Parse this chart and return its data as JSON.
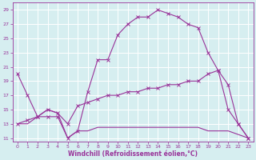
{
  "title": "",
  "xlabel": "Windchill (Refroidissement éolien,°C)",
  "background_color": "#d6eef0",
  "grid_color": "#ffffff",
  "line_color": "#993399",
  "xlim": [
    -0.5,
    23.5
  ],
  "ylim": [
    10.5,
    30.0
  ],
  "xticks": [
    0,
    1,
    2,
    3,
    4,
    5,
    6,
    7,
    8,
    9,
    10,
    11,
    12,
    13,
    14,
    15,
    16,
    17,
    18,
    19,
    20,
    21,
    22,
    23
  ],
  "yticks": [
    11,
    13,
    15,
    17,
    19,
    21,
    23,
    25,
    27,
    29
  ],
  "curve1_x": [
    0,
    1,
    2,
    3,
    4,
    5,
    6,
    7,
    8,
    9,
    10,
    11,
    12,
    13,
    14,
    15,
    16,
    17,
    18,
    19,
    20,
    21,
    22,
    23
  ],
  "curve1_y": [
    20,
    17,
    14,
    14,
    14,
    11,
    12,
    17.5,
    22,
    22,
    25.5,
    27,
    28,
    28,
    29,
    28.5,
    28,
    27,
    26.5,
    23,
    20.5,
    15,
    13,
    11
  ],
  "curve2_x": [
    0,
    1,
    2,
    3,
    4,
    5,
    6,
    7,
    8,
    9,
    10,
    11,
    12,
    13,
    14,
    15,
    16,
    17,
    18,
    19,
    20,
    21,
    22,
    23
  ],
  "curve2_y": [
    13,
    13.5,
    14,
    15,
    14.5,
    13,
    15.5,
    16,
    16.5,
    17,
    17,
    17.5,
    17.5,
    18,
    18,
    18.5,
    18.5,
    19,
    19,
    20,
    20.5,
    18.5,
    13,
    11
  ],
  "curve3_x": [
    0,
    1,
    2,
    3,
    4,
    5,
    6,
    7,
    8,
    9,
    10,
    11,
    12,
    13,
    14,
    15,
    16,
    17,
    18,
    19,
    20,
    21,
    22,
    23
  ],
  "curve3_y": [
    13,
    13,
    14,
    15,
    14.5,
    11,
    12,
    12,
    12.5,
    12.5,
    12.5,
    12.5,
    12.5,
    12.5,
    12.5,
    12.5,
    12.5,
    12.5,
    12.5,
    12,
    12,
    12,
    11.5,
    11
  ]
}
